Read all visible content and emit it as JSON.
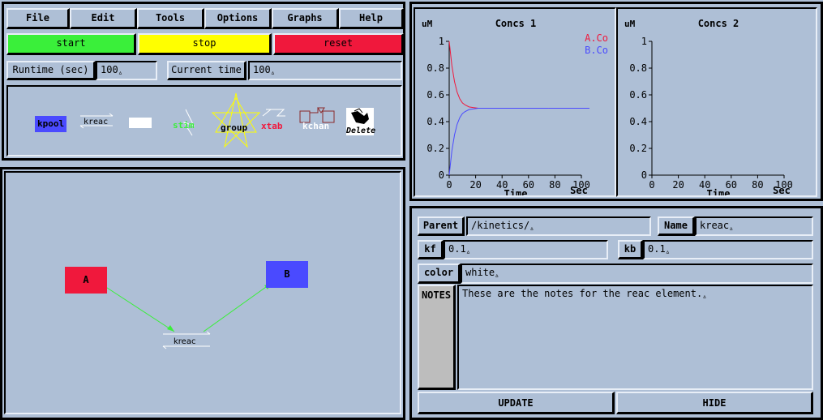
{
  "menu": {
    "items": [
      "File",
      "Edit",
      "Tools",
      "Options",
      "Graphs",
      "Help"
    ]
  },
  "controls": {
    "start": "start",
    "stop": "stop",
    "reset": "reset",
    "start_color": "#3aef3a",
    "stop_color": "#ffff00",
    "reset_color": "#f0183c"
  },
  "runtime": {
    "label": "Runtime (sec)",
    "value": "100",
    "current_label": "Current time",
    "current_value": "100"
  },
  "toolbar": {
    "kpool": "kpool",
    "kreac": "kreac",
    "stim": "stim",
    "group": "group",
    "xtab": "xtab",
    "kchan": "kchan",
    "delete": "Delete"
  },
  "canvas": {
    "pool_a": {
      "label": "A",
      "color": "#f0183c"
    },
    "pool_b": {
      "label": "B",
      "color": "#4a4aff"
    },
    "reac": {
      "label": "kreac"
    }
  },
  "graphs": [
    {
      "title": "Concs 1",
      "ylabel": "uM",
      "xlabel": "Time",
      "xunit": "Sec",
      "yticks": [
        "1",
        "0.8",
        "0.6",
        "0.4",
        "0.2",
        "0"
      ],
      "xticks": [
        "0",
        "20",
        "40",
        "60",
        "80",
        "100"
      ],
      "legend": [
        {
          "name": "A.Co",
          "color": "#f0183c"
        },
        {
          "name": "B.Co",
          "color": "#4a4aff"
        }
      ]
    },
    {
      "title": "Concs 2",
      "ylabel": "uM",
      "xlabel": "Time",
      "xunit": "Sec",
      "yticks": [
        "1",
        "0.8",
        "0.6",
        "0.4",
        "0.2",
        "0"
      ],
      "xticks": [
        "0",
        "20",
        "40",
        "60",
        "80",
        "100"
      ],
      "legend": []
    }
  ],
  "chart_data": {
    "type": "line",
    "title": "Concs 1",
    "xlabel": "Time",
    "ylabel": "uM",
    "xlim": [
      0,
      100
    ],
    "ylim": [
      0,
      1
    ],
    "series": [
      {
        "name": "A.Co",
        "x": [
          0,
          2,
          4,
          6,
          8,
          10,
          12,
          15,
          18,
          22,
          30,
          40,
          60,
          75
        ],
        "values": [
          1,
          0.82,
          0.7,
          0.62,
          0.57,
          0.54,
          0.525,
          0.51,
          0.505,
          0.5,
          0.5,
          0.5,
          0.5,
          0.5
        ]
      },
      {
        "name": "B.Co",
        "x": [
          0,
          2,
          4,
          6,
          8,
          10,
          12,
          15,
          18,
          22,
          30,
          40,
          60,
          75
        ],
        "values": [
          0,
          0.18,
          0.3,
          0.38,
          0.43,
          0.46,
          0.475,
          0.49,
          0.495,
          0.5,
          0.5,
          0.5,
          0.5,
          0.5
        ]
      }
    ]
  },
  "edit": {
    "parent_label": "Parent",
    "parent_value": "/kinetics/",
    "name_label": "Name",
    "name_value": "kreac",
    "kf_label": "kf",
    "kf_value": "0.1",
    "kb_label": "kb",
    "kb_value": "0.1",
    "color_label": "color",
    "color_value": "white",
    "notes_label": "NOTES",
    "notes_value": "These are the notes for the reac element.",
    "update": "UPDATE",
    "hide": "HIDE"
  }
}
